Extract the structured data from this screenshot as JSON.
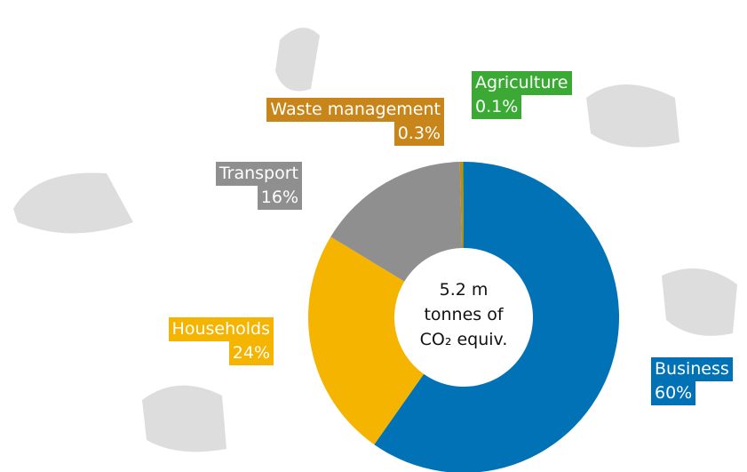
{
  "chart_data": {
    "type": "donut",
    "center_text": [
      "5.2 m",
      "tonnes of",
      "CO₂ equiv."
    ],
    "categories": [
      "Business",
      "Households",
      "Transport",
      "Waste management",
      "Agriculture"
    ],
    "values": [
      60,
      24,
      16,
      0.3,
      0.1
    ],
    "value_labels": [
      "60%",
      "24%",
      "16%",
      "0.3%",
      "0.1%"
    ],
    "colors": [
      "#0072b5",
      "#f5b400",
      "#8f8f8f",
      "#c8861a",
      "#3aaa35"
    ]
  }
}
